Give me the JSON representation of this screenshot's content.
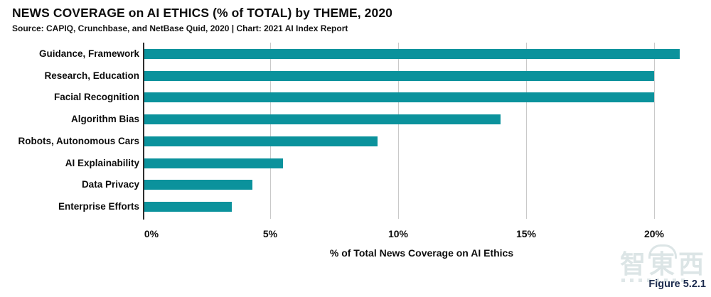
{
  "header": {
    "title": "NEWS COVERAGE on AI ETHICS (% of TOTAL) by THEME, 2020",
    "subtitle": "Source: CAPIQ, Crunchbase, and NetBase Quid, 2020 | Chart: 2021 AI Index Report"
  },
  "chart_data": {
    "type": "bar",
    "orientation": "horizontal",
    "title": "NEWS COVERAGE on AI ETHICS (% of TOTAL) by THEME, 2020",
    "categories": [
      "Guidance, Framework",
      "Research, Education",
      "Facial Recognition",
      "Algorithm Bias",
      "Robots, Autonomous Cars",
      "AI Explainability",
      "Data Privacy",
      "Enterprise Efforts"
    ],
    "values": [
      21.0,
      20.0,
      20.0,
      14.0,
      9.2,
      5.5,
      4.3,
      3.5
    ],
    "xlabel": "% of Total News Coverage on AI Ethics",
    "ylabel": "",
    "x_ticks": [
      {
        "value": 0,
        "label": "0%"
      },
      {
        "value": 5,
        "label": "5%"
      },
      {
        "value": 10,
        "label": "10%"
      },
      {
        "value": 15,
        "label": "15%"
      },
      {
        "value": 20,
        "label": "20%"
      }
    ],
    "xlim": [
      0,
      21.8
    ],
    "grid": true,
    "legend_position": "none",
    "bar_color": "#0b929c"
  },
  "footer": {
    "figure_label": "Figure 5.2.1",
    "watermark_characters": [
      "智",
      "東",
      "西"
    ]
  }
}
